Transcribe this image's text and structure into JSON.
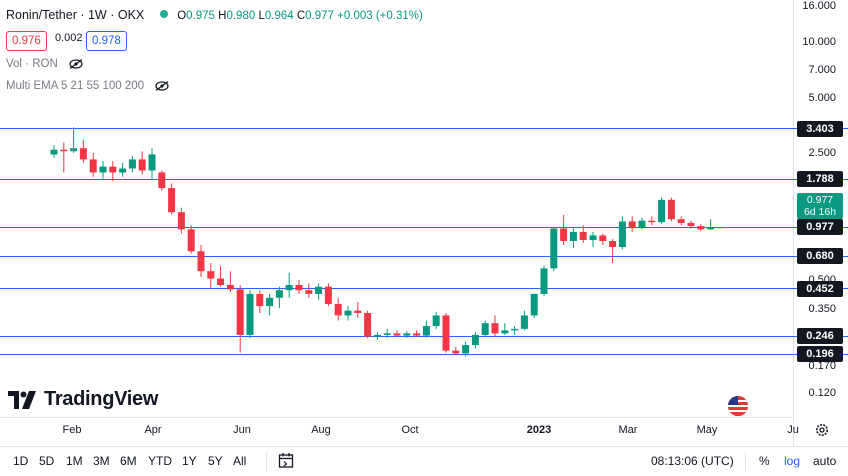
{
  "header": {
    "symbol": "Ronin/Tether · 1W · OKX",
    "o_key": "O",
    "o_val": "0.975",
    "h_key": "H",
    "h_val": "0.980",
    "l_key": "L",
    "l_val": "0.964",
    "c_key": "C",
    "c_val": "0.977",
    "change": "+0.003 (+0.31%)",
    "sell_price": "0.976",
    "spread": "0.002",
    "buy_price": "0.978",
    "indicators": [
      "Vol · RON",
      "Multi EMA 5 21 55 100 200"
    ]
  },
  "brand": {
    "name": "TradingView"
  },
  "colors": {
    "up": "#089981",
    "down": "#f23645",
    "hline": "#2962ff",
    "label_bg": "#131722"
  },
  "price_axis_ticks": [
    "16.000",
    "10.000",
    "7.000",
    "5.000",
    "2.500",
    "0.500",
    "0.350",
    "0.170",
    "0.120"
  ],
  "hline_labels": [
    "3.403",
    "1.788",
    "0.977",
    "0.680",
    "0.452",
    "0.246",
    "0.196"
  ],
  "last_price": {
    "value": "0.977",
    "countdown": "6d 16h"
  },
  "time_axis": [
    {
      "label": "Feb",
      "bold": false
    },
    {
      "label": "Apr",
      "bold": false
    },
    {
      "label": "Jun",
      "bold": false
    },
    {
      "label": "Aug",
      "bold": false
    },
    {
      "label": "Oct",
      "bold": false
    },
    {
      "label": "2023",
      "bold": true
    },
    {
      "label": "Mar",
      "bold": false
    },
    {
      "label": "May",
      "bold": false
    },
    {
      "label": "Ju",
      "bold": false
    }
  ],
  "bottom_bar": {
    "ranges": [
      "1D",
      "5D",
      "1M",
      "3M",
      "6M",
      "YTD",
      "1Y",
      "5Y",
      "All"
    ],
    "time": "08:13:06 (UTC)",
    "percent": "%",
    "log": "log",
    "auto": "auto"
  },
  "chart_data": {
    "type": "candlestick",
    "scale": "log",
    "ylim": [
      0.1,
      16.0
    ],
    "horizontal_lines": [
      3.403,
      1.788,
      0.977,
      0.68,
      0.452,
      0.246,
      0.196
    ],
    "candles": [
      {
        "o": 2.45,
        "h": 2.75,
        "l": 2.35,
        "c": 2.6
      },
      {
        "o": 2.6,
        "h": 2.85,
        "l": 1.95,
        "c": 2.55
      },
      {
        "o": 2.55,
        "h": 3.45,
        "l": 2.5,
        "c": 2.65
      },
      {
        "o": 2.65,
        "h": 2.95,
        "l": 2.2,
        "c": 2.3
      },
      {
        "o": 2.3,
        "h": 2.5,
        "l": 1.85,
        "c": 1.95
      },
      {
        "o": 1.95,
        "h": 2.25,
        "l": 1.8,
        "c": 2.1
      },
      {
        "o": 2.1,
        "h": 2.25,
        "l": 1.75,
        "c": 1.95
      },
      {
        "o": 1.95,
        "h": 2.2,
        "l": 1.85,
        "c": 2.05
      },
      {
        "o": 2.05,
        "h": 2.4,
        "l": 1.95,
        "c": 2.3
      },
      {
        "o": 2.3,
        "h": 2.55,
        "l": 1.9,
        "c": 2.0
      },
      {
        "o": 2.0,
        "h": 2.65,
        "l": 1.8,
        "c": 2.45
      },
      {
        "o": 1.95,
        "h": 2.0,
        "l": 1.55,
        "c": 1.6
      },
      {
        "o": 1.6,
        "h": 1.7,
        "l": 1.15,
        "c": 1.18
      },
      {
        "o": 1.18,
        "h": 1.25,
        "l": 0.9,
        "c": 0.95
      },
      {
        "o": 0.95,
        "h": 1.0,
        "l": 0.7,
        "c": 0.72
      },
      {
        "o": 0.72,
        "h": 0.78,
        "l": 0.52,
        "c": 0.56
      },
      {
        "o": 0.56,
        "h": 0.62,
        "l": 0.45,
        "c": 0.51
      },
      {
        "o": 0.51,
        "h": 0.6,
        "l": 0.46,
        "c": 0.47
      },
      {
        "o": 0.47,
        "h": 0.56,
        "l": 0.43,
        "c": 0.445
      },
      {
        "o": 0.445,
        "h": 0.47,
        "l": 0.2,
        "c": 0.25
      },
      {
        "o": 0.25,
        "h": 0.44,
        "l": 0.24,
        "c": 0.42
      },
      {
        "o": 0.42,
        "h": 0.44,
        "l": 0.33,
        "c": 0.36
      },
      {
        "o": 0.36,
        "h": 0.42,
        "l": 0.32,
        "c": 0.4
      },
      {
        "o": 0.4,
        "h": 0.46,
        "l": 0.35,
        "c": 0.44
      },
      {
        "o": 0.44,
        "h": 0.55,
        "l": 0.4,
        "c": 0.47
      },
      {
        "o": 0.47,
        "h": 0.5,
        "l": 0.42,
        "c": 0.44
      },
      {
        "o": 0.44,
        "h": 0.48,
        "l": 0.4,
        "c": 0.42
      },
      {
        "o": 0.42,
        "h": 0.48,
        "l": 0.39,
        "c": 0.46
      },
      {
        "o": 0.46,
        "h": 0.48,
        "l": 0.36,
        "c": 0.37
      },
      {
        "o": 0.37,
        "h": 0.4,
        "l": 0.3,
        "c": 0.32
      },
      {
        "o": 0.32,
        "h": 0.36,
        "l": 0.3,
        "c": 0.34
      },
      {
        "o": 0.34,
        "h": 0.38,
        "l": 0.31,
        "c": 0.33
      },
      {
        "o": 0.33,
        "h": 0.34,
        "l": 0.24,
        "c": 0.245
      },
      {
        "o": 0.245,
        "h": 0.26,
        "l": 0.235,
        "c": 0.25
      },
      {
        "o": 0.25,
        "h": 0.27,
        "l": 0.24,
        "c": 0.255
      },
      {
        "o": 0.255,
        "h": 0.265,
        "l": 0.245,
        "c": 0.248
      },
      {
        "o": 0.248,
        "h": 0.262,
        "l": 0.24,
        "c": 0.255
      },
      {
        "o": 0.255,
        "h": 0.265,
        "l": 0.243,
        "c": 0.248
      },
      {
        "o": 0.248,
        "h": 0.3,
        "l": 0.242,
        "c": 0.28
      },
      {
        "o": 0.28,
        "h": 0.335,
        "l": 0.27,
        "c": 0.32
      },
      {
        "o": 0.32,
        "h": 0.33,
        "l": 0.2,
        "c": 0.205
      },
      {
        "o": 0.205,
        "h": 0.215,
        "l": 0.193,
        "c": 0.198
      },
      {
        "o": 0.198,
        "h": 0.23,
        "l": 0.19,
        "c": 0.22
      },
      {
        "o": 0.22,
        "h": 0.26,
        "l": 0.21,
        "c": 0.25
      },
      {
        "o": 0.25,
        "h": 0.3,
        "l": 0.245,
        "c": 0.29
      },
      {
        "o": 0.29,
        "h": 0.32,
        "l": 0.245,
        "c": 0.255
      },
      {
        "o": 0.255,
        "h": 0.29,
        "l": 0.25,
        "c": 0.265
      },
      {
        "o": 0.265,
        "h": 0.28,
        "l": 0.25,
        "c": 0.27
      },
      {
        "o": 0.27,
        "h": 0.34,
        "l": 0.265,
        "c": 0.32
      },
      {
        "o": 0.32,
        "h": 0.42,
        "l": 0.31,
        "c": 0.42
      },
      {
        "o": 0.42,
        "h": 0.6,
        "l": 0.41,
        "c": 0.58
      },
      {
        "o": 0.58,
        "h": 0.98,
        "l": 0.56,
        "c": 0.96
      },
      {
        "o": 0.96,
        "h": 1.14,
        "l": 0.78,
        "c": 0.82
      },
      {
        "o": 0.82,
        "h": 0.98,
        "l": 0.75,
        "c": 0.92
      },
      {
        "o": 0.92,
        "h": 1.0,
        "l": 0.8,
        "c": 0.83
      },
      {
        "o": 0.83,
        "h": 0.92,
        "l": 0.76,
        "c": 0.88
      },
      {
        "o": 0.88,
        "h": 0.9,
        "l": 0.78,
        "c": 0.82
      },
      {
        "o": 0.82,
        "h": 0.84,
        "l": 0.62,
        "c": 0.76
      },
      {
        "o": 0.76,
        "h": 1.12,
        "l": 0.74,
        "c": 1.05
      },
      {
        "o": 1.05,
        "h": 1.12,
        "l": 0.92,
        "c": 0.97
      },
      {
        "o": 0.97,
        "h": 1.1,
        "l": 0.95,
        "c": 1.06
      },
      {
        "o": 1.06,
        "h": 1.12,
        "l": 1.0,
        "c": 1.04
      },
      {
        "o": 1.04,
        "h": 1.42,
        "l": 1.02,
        "c": 1.38
      },
      {
        "o": 1.38,
        "h": 1.42,
        "l": 1.05,
        "c": 1.08
      },
      {
        "o": 1.08,
        "h": 1.12,
        "l": 1.0,
        "c": 1.03
      },
      {
        "o": 1.03,
        "h": 1.06,
        "l": 0.96,
        "c": 0.99
      },
      {
        "o": 0.99,
        "h": 1.02,
        "l": 0.93,
        "c": 0.95
      },
      {
        "o": 0.95,
        "h": 1.08,
        "l": 0.94,
        "c": 0.975
      },
      {
        "o": 0.975,
        "h": 0.98,
        "l": 0.964,
        "c": 0.977
      }
    ]
  }
}
